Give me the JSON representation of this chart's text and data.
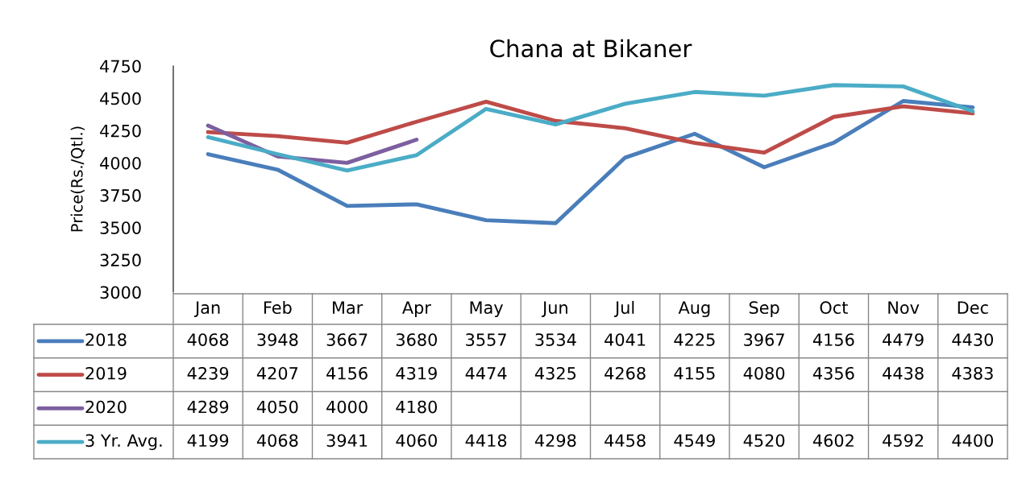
{
  "chart_data": {
    "type": "line",
    "title": "Chana at Bikaner",
    "ylabel": "Price(Rs./Qtl.)",
    "categories": [
      "Jan",
      "Feb",
      "Mar",
      "Apr",
      "May",
      "Jun",
      "Jul",
      "Aug",
      "Sep",
      "Oct",
      "Nov",
      "Dec"
    ],
    "series": [
      {
        "name": "2018",
        "color": "#4a7ebb",
        "values": [
          4068,
          3948,
          3667,
          3680,
          3557,
          3534,
          4041,
          4225,
          3967,
          4156,
          4479,
          4430
        ]
      },
      {
        "name": "2019",
        "color": "#be4b48",
        "values": [
          4239,
          4207,
          4156,
          4319,
          4474,
          4325,
          4268,
          4155,
          4080,
          4356,
          4438,
          4383
        ]
      },
      {
        "name": "2020",
        "color": "#7d5fa0",
        "values": [
          4289,
          4050,
          4000,
          4180,
          null,
          null,
          null,
          null,
          null,
          null,
          null,
          null
        ]
      },
      {
        "name": "3 Yr. Avg.",
        "color": "#4bacc6",
        "values": [
          4199,
          4068,
          3941,
          4060,
          4418,
          4298,
          4458,
          4549,
          4520,
          4602,
          4592,
          4400
        ]
      }
    ],
    "ylim": [
      3000,
      4750
    ],
    "yticks": [
      3000,
      3250,
      3500,
      3750,
      4000,
      4250,
      4500,
      4750
    ],
    "grid": false,
    "legend": "bottom",
    "data_labels": true,
    "line_style": "solid",
    "marker": "none"
  }
}
